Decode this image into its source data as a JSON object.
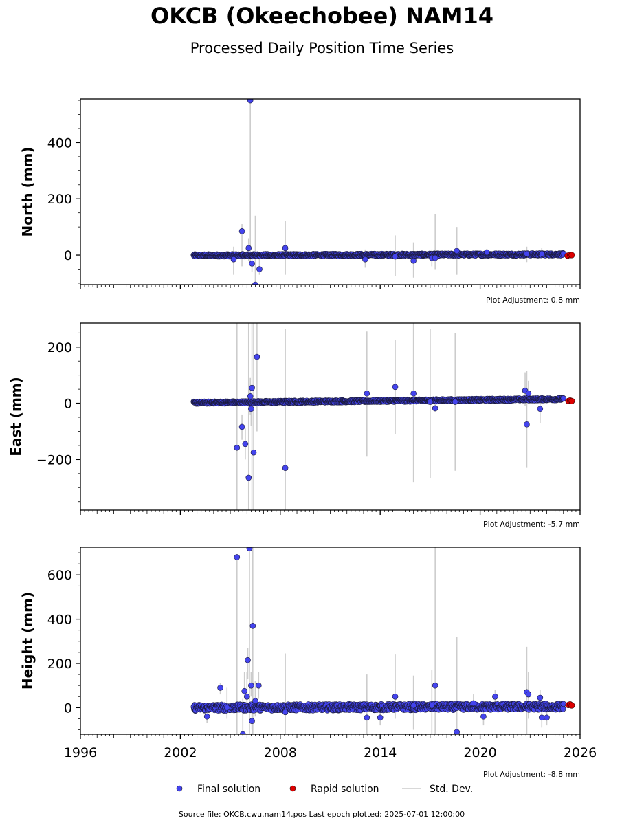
{
  "title": "OKCB (Okeechobee) NAM14",
  "subtitle": "Processed Daily Position Time Series",
  "legend": {
    "final": "Final solution",
    "rapid": "Rapid solution",
    "std": "Std. Dev."
  },
  "source_note": "Source file: OKCB.cwu.nam14.pos  Last epoch plotted: 2025-07-01 12:00:00",
  "colors": {
    "final": "#4444ee",
    "rapid": "#dd0000",
    "std": "#cccccc"
  },
  "chart_data": [
    {
      "type": "scatter",
      "ylabel": "North (mm)",
      "plot_adjustment": "Plot Adjustment: 0.8 mm",
      "xlim": [
        1996,
        2026
      ],
      "ylim": [
        -105,
        555
      ],
      "yticks": [
        0,
        200,
        400
      ],
      "data_start": 2002.8,
      "data_end": 2025.0,
      "baseline": {
        "start": -1,
        "end": 3
      },
      "outliers": [
        {
          "x": 2005.2,
          "y": -15,
          "err_low": -70,
          "err_high": 30
        },
        {
          "x": 2005.7,
          "y": 85,
          "err_low": -40,
          "err_high": 110
        },
        {
          "x": 2006.1,
          "y": 25,
          "err_low": -20,
          "err_high": 60
        },
        {
          "x": 2006.2,
          "y": 550,
          "err_low": -30,
          "err_high": 550
        },
        {
          "x": 2006.3,
          "y": -30,
          "err_low": -60,
          "err_high": 10
        },
        {
          "x": 2006.5,
          "y": -105,
          "err_low": -105,
          "err_high": 140
        },
        {
          "x": 2006.75,
          "y": -50,
          "err_low": -70,
          "err_high": 10
        },
        {
          "x": 2008.3,
          "y": 25,
          "err_low": -70,
          "err_high": 120
        },
        {
          "x": 2013.1,
          "y": -15,
          "err_low": -45,
          "err_high": 20
        },
        {
          "x": 2014.9,
          "y": -5,
          "err_low": -75,
          "err_high": 70
        },
        {
          "x": 2016.0,
          "y": -20,
          "err_low": -80,
          "err_high": 45
        },
        {
          "x": 2017.1,
          "y": -10,
          "err_low": -40,
          "err_high": 20
        },
        {
          "x": 2017.3,
          "y": -10,
          "err_low": -50,
          "err_high": 145
        },
        {
          "x": 2018.6,
          "y": 15,
          "err_low": -70,
          "err_high": 100
        },
        {
          "x": 2020.4,
          "y": 10,
          "err_low": -10,
          "err_high": 20
        },
        {
          "x": 2022.8,
          "y": 5,
          "err_low": -25,
          "err_high": 30
        },
        {
          "x": 2023.7,
          "y": 5,
          "err_low": -10,
          "err_high": 25
        }
      ],
      "rapid": [
        {
          "x": 2025.25,
          "y": -2
        },
        {
          "x": 2025.4,
          "y": 0
        },
        {
          "x": 2025.5,
          "y": 0
        }
      ]
    },
    {
      "type": "scatter",
      "ylabel": "East (mm)",
      "plot_adjustment": "Plot Adjustment: -5.7 mm",
      "xlim": [
        1996,
        2026
      ],
      "ylim": [
        -380,
        285
      ],
      "yticks": [
        -200,
        0,
        200
      ],
      "data_start": 2002.8,
      "data_end": 2025.0,
      "baseline": {
        "start": 2,
        "end": 15
      },
      "outliers": [
        {
          "x": 2005.4,
          "y": -158,
          "err_low": -380,
          "err_high": 285
        },
        {
          "x": 2005.7,
          "y": -84,
          "err_low": -130,
          "err_high": -40
        },
        {
          "x": 2005.9,
          "y": -145,
          "err_low": -200,
          "err_high": -90
        },
        {
          "x": 2006.1,
          "y": -265,
          "err_low": -380,
          "err_high": 285
        },
        {
          "x": 2006.2,
          "y": 25,
          "err_low": -40,
          "err_high": 90
        },
        {
          "x": 2006.3,
          "y": 55,
          "err_low": -380,
          "err_high": 285
        },
        {
          "x": 2006.4,
          "y": -175,
          "err_low": -380,
          "err_high": 285
        },
        {
          "x": 2006.6,
          "y": 165,
          "err_low": -100,
          "err_high": 285
        },
        {
          "x": 2006.25,
          "y": -20,
          "err_low": -80,
          "err_high": 30
        },
        {
          "x": 2008.3,
          "y": -230,
          "err_low": -380,
          "err_high": 265
        },
        {
          "x": 2013.2,
          "y": 35,
          "err_low": -190,
          "err_high": 255
        },
        {
          "x": 2014.9,
          "y": 58,
          "err_low": -110,
          "err_high": 225
        },
        {
          "x": 2016.0,
          "y": 35,
          "err_low": -280,
          "err_high": 285
        },
        {
          "x": 2017.0,
          "y": 5,
          "err_low": -265,
          "err_high": 265
        },
        {
          "x": 2017.3,
          "y": -18,
          "err_low": -30,
          "err_high": 10
        },
        {
          "x": 2018.5,
          "y": 5,
          "err_low": -240,
          "err_high": 250
        },
        {
          "x": 2022.7,
          "y": 45,
          "err_low": -10,
          "err_high": 110
        },
        {
          "x": 2022.8,
          "y": -75,
          "err_low": -230,
          "err_high": 115
        },
        {
          "x": 2022.9,
          "y": 35,
          "err_low": 0,
          "err_high": 80
        },
        {
          "x": 2023.6,
          "y": -20,
          "err_low": -70,
          "err_high": 10
        }
      ],
      "rapid": [
        {
          "x": 2025.3,
          "y": 8
        },
        {
          "x": 2025.4,
          "y": 10
        },
        {
          "x": 2025.5,
          "y": 8
        }
      ]
    },
    {
      "type": "scatter",
      "ylabel": "Height (mm)",
      "plot_adjustment": "Plot Adjustment: -8.8 mm",
      "xlim": [
        1996,
        2026
      ],
      "ylim": [
        -120,
        725
      ],
      "yticks": [
        0,
        200,
        400,
        600
      ],
      "xticks": [
        1996,
        2002,
        2008,
        2014,
        2020,
        2026
      ],
      "data_start": 2002.8,
      "data_end": 2025.0,
      "baseline": {
        "start": 0,
        "end": 5
      },
      "outliers": [
        {
          "x": 2003.6,
          "y": -40,
          "err_low": -70,
          "err_high": -10
        },
        {
          "x": 2004.4,
          "y": 90,
          "err_low": 60,
          "err_high": 110
        },
        {
          "x": 2004.8,
          "y": 0,
          "err_low": -50,
          "err_high": 90
        },
        {
          "x": 2005.4,
          "y": 680,
          "err_low": -120,
          "err_high": 680
        },
        {
          "x": 2005.75,
          "y": -120,
          "err_low": -120,
          "err_high": 40
        },
        {
          "x": 2005.85,
          "y": 75,
          "err_low": 40,
          "err_high": 160
        },
        {
          "x": 2006.0,
          "y": 50,
          "err_low": -30,
          "err_high": 160
        },
        {
          "x": 2006.05,
          "y": 215,
          "err_low": 130,
          "err_high": 270
        },
        {
          "x": 2006.15,
          "y": 720,
          "err_low": -120,
          "err_high": 725
        },
        {
          "x": 2006.25,
          "y": 100,
          "err_low": 50,
          "err_high": 160
        },
        {
          "x": 2006.3,
          "y": -60,
          "err_low": -100,
          "err_high": 20
        },
        {
          "x": 2006.35,
          "y": 370,
          "err_low": -120,
          "err_high": 725
        },
        {
          "x": 2006.5,
          "y": 30,
          "err_low": -40,
          "err_high": 120
        },
        {
          "x": 2006.7,
          "y": 100,
          "err_low": 40,
          "err_high": 160
        },
        {
          "x": 2008.3,
          "y": -20,
          "err_low": -120,
          "err_high": 245
        },
        {
          "x": 2013.2,
          "y": -45,
          "err_low": -120,
          "err_high": 150
        },
        {
          "x": 2014.0,
          "y": -45,
          "err_low": -80,
          "err_high": 10
        },
        {
          "x": 2014.9,
          "y": 50,
          "err_low": -50,
          "err_high": 240
        },
        {
          "x": 2016.0,
          "y": 10,
          "err_low": -100,
          "err_high": 145
        },
        {
          "x": 2017.1,
          "y": 10,
          "err_low": -120,
          "err_high": 170
        },
        {
          "x": 2017.3,
          "y": 100,
          "err_low": -120,
          "err_high": 725
        },
        {
          "x": 2018.6,
          "y": -110,
          "err_low": -120,
          "err_high": 320
        },
        {
          "x": 2019.6,
          "y": 20,
          "err_low": -20,
          "err_high": 60
        },
        {
          "x": 2020.2,
          "y": -40,
          "err_low": -80,
          "err_high": 20
        },
        {
          "x": 2020.9,
          "y": 50,
          "err_low": 10,
          "err_high": 80
        },
        {
          "x": 2022.8,
          "y": 70,
          "err_low": -120,
          "err_high": 275
        },
        {
          "x": 2022.9,
          "y": 60,
          "err_low": -50,
          "err_high": 160
        },
        {
          "x": 2023.6,
          "y": 45,
          "err_low": 0,
          "err_high": 80
        },
        {
          "x": 2023.7,
          "y": -45,
          "err_low": -90,
          "err_high": 0
        },
        {
          "x": 2024.0,
          "y": -45,
          "err_low": -80,
          "err_high": 0
        }
      ],
      "rapid": [
        {
          "x": 2025.3,
          "y": 12
        },
        {
          "x": 2025.4,
          "y": 15
        },
        {
          "x": 2025.5,
          "y": 10
        }
      ]
    }
  ]
}
